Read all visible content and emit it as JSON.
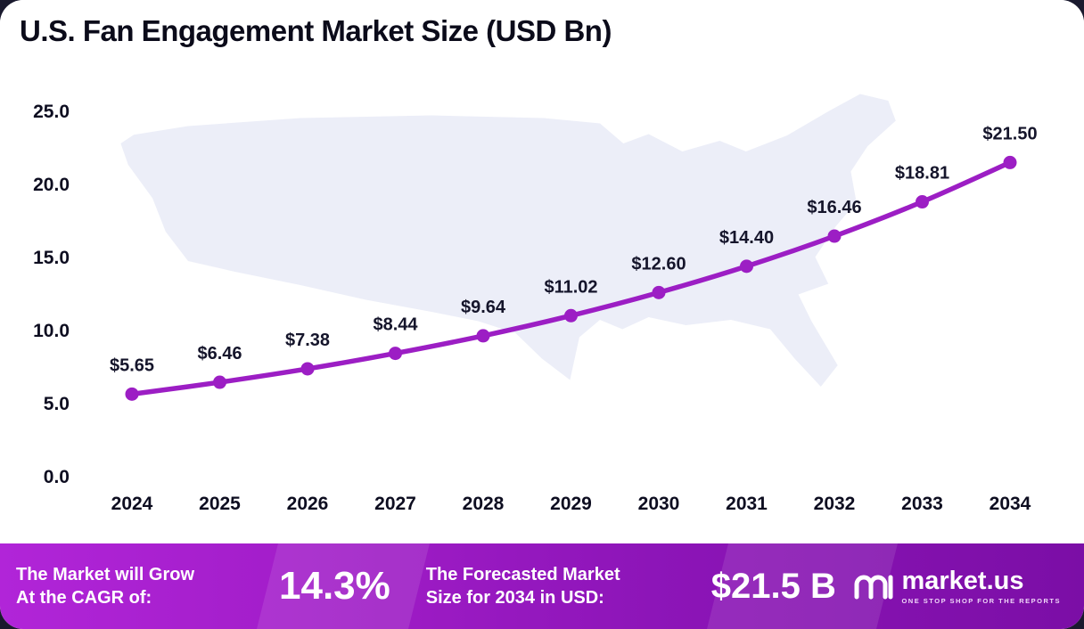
{
  "title": "U.S. Fan Engagement Market Size (USD Bn)",
  "chart_data": {
    "type": "line",
    "title": "U.S. Fan Engagement Market Size (USD Bn)",
    "x": [
      2024,
      2025,
      2026,
      2027,
      2028,
      2029,
      2030,
      2031,
      2032,
      2033,
      2034
    ],
    "series": [
      {
        "name": "U.S. Fan Engagement Market Size (USD Bn)",
        "values": [
          5.65,
          6.46,
          7.38,
          8.44,
          9.64,
          11.02,
          12.6,
          14.4,
          16.46,
          18.81,
          21.5
        ]
      }
    ],
    "point_labels": [
      "$5.65",
      "$6.46",
      "$7.38",
      "$8.44",
      "$9.64",
      "$11.02",
      "$12.60",
      "$14.40",
      "$16.46",
      "$18.81",
      "$21.50"
    ],
    "ylim": [
      0,
      25
    ],
    "yticks": [
      0,
      5,
      10,
      15,
      20,
      25
    ],
    "ytick_labels": [
      "0.0",
      "5.0",
      "10.0",
      "15.0",
      "20.0",
      "25.0"
    ],
    "line_color": "#9c1ec4",
    "grid": false,
    "legend": "none"
  },
  "footer": {
    "cagr_label_1": "The Market will Grow",
    "cagr_label_2": "At the CAGR of:",
    "cagr_value": "14.3%",
    "forecast_label_1": "The Forecasted Market",
    "forecast_label_2": "Size for 2034 in USD:",
    "forecast_value": "$21.5 B",
    "logo_text": "market.us",
    "logo_tagline": "ONE STOP SHOP FOR THE REPORTS"
  }
}
